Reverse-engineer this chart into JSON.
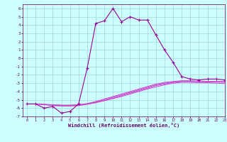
{
  "x_main": [
    0,
    1,
    2,
    3,
    4,
    5,
    6,
    7,
    8,
    9,
    10,
    11,
    12,
    13,
    14,
    15,
    16,
    17,
    18,
    19,
    20,
    21,
    22,
    23
  ],
  "y_main": [
    -5.5,
    -5.5,
    -6.0,
    -5.8,
    -6.6,
    -6.4,
    -5.5,
    -1.2,
    4.2,
    4.5,
    6.0,
    4.4,
    5.0,
    4.6,
    4.6,
    2.8,
    1.0,
    -0.5,
    -2.2,
    -2.5,
    -2.6,
    -2.5,
    -2.5,
    -2.6
  ],
  "y_curve1": [
    -5.5,
    -5.5,
    -5.55,
    -5.6,
    -5.65,
    -5.65,
    -5.6,
    -5.5,
    -5.3,
    -5.1,
    -4.8,
    -4.5,
    -4.2,
    -3.9,
    -3.6,
    -3.3,
    -3.1,
    -2.9,
    -2.8,
    -2.8,
    -2.8,
    -2.8,
    -2.8,
    -2.8
  ],
  "y_curve2": [
    -5.5,
    -5.5,
    -5.55,
    -5.6,
    -5.65,
    -5.65,
    -5.6,
    -5.45,
    -5.2,
    -4.9,
    -4.6,
    -4.3,
    -4.0,
    -3.7,
    -3.4,
    -3.1,
    -2.9,
    -2.8,
    -2.7,
    -2.7,
    -2.75,
    -2.8,
    -2.8,
    -2.85
  ],
  "y_curve3": [
    -5.5,
    -5.5,
    -5.55,
    -5.65,
    -5.7,
    -5.7,
    -5.65,
    -5.5,
    -5.25,
    -5.0,
    -4.7,
    -4.4,
    -4.1,
    -3.8,
    -3.5,
    -3.2,
    -3.0,
    -2.85,
    -2.75,
    -2.75,
    -2.8,
    -2.85,
    -2.85,
    -2.9
  ],
  "y_curve4": [
    -5.5,
    -5.5,
    -5.6,
    -5.7,
    -5.75,
    -5.75,
    -5.7,
    -5.55,
    -5.35,
    -5.1,
    -4.85,
    -4.6,
    -4.3,
    -4.0,
    -3.7,
    -3.45,
    -3.2,
    -3.0,
    -2.9,
    -2.9,
    -2.95,
    -2.95,
    -3.0,
    -3.05
  ],
  "main_color": "#990099",
  "curve_color": "#cc44cc",
  "bg_color": "#ccffff",
  "grid_color": "#99cccc",
  "text_color": "#660066",
  "xlabel": "Windchill (Refroidissement éolien,°C)",
  "ylim": [
    -7,
    6.5
  ],
  "xlim": [
    -0.5,
    23
  ],
  "yticks": [
    -7,
    -6,
    -5,
    -4,
    -3,
    -2,
    -1,
    0,
    1,
    2,
    3,
    4,
    5,
    6
  ],
  "xticks": [
    0,
    1,
    2,
    3,
    4,
    5,
    6,
    7,
    8,
    9,
    10,
    11,
    12,
    13,
    14,
    15,
    16,
    17,
    18,
    19,
    20,
    21,
    22,
    23
  ]
}
